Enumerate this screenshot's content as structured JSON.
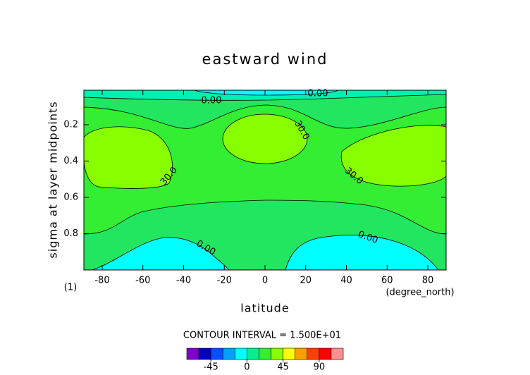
{
  "chart_data": {
    "type": "contour",
    "title": "eastward wind",
    "x_label": "latitude",
    "y_label": "sigma at layer midpoints",
    "x_unit": "(degree_north)",
    "y_unit": "(1)",
    "xlim": [
      -89,
      89
    ],
    "xticks": [
      -80,
      -60,
      -40,
      -20,
      0,
      20,
      40,
      60,
      80
    ],
    "ylim": [
      0.01,
      1.0
    ],
    "yticks": [
      0.2,
      0.4,
      0.6,
      0.8
    ],
    "y_inverted": true,
    "contour_labels": [
      "0.00",
      "0.00",
      "30.0",
      "30.0",
      "30.0",
      "0.00",
      "0.00"
    ],
    "interval_text": "CONTOUR INTERVAL = 1.500E+01",
    "colorbar": {
      "levels": [
        -75,
        -60,
        -45,
        -30,
        -15,
        0,
        15,
        30,
        45,
        60,
        75,
        90,
        105,
        120
      ],
      "colors": [
        "#8000d0",
        "#0000c0",
        "#0050ff",
        "#00a0ff",
        "#00ffff",
        "#00f090",
        "#33ee33",
        "#88ff00",
        "#ffff00",
        "#ffa000",
        "#ff4000",
        "#ff0000",
        "#ff9090"
      ],
      "ticks": [
        -45,
        0,
        45,
        90
      ]
    }
  }
}
